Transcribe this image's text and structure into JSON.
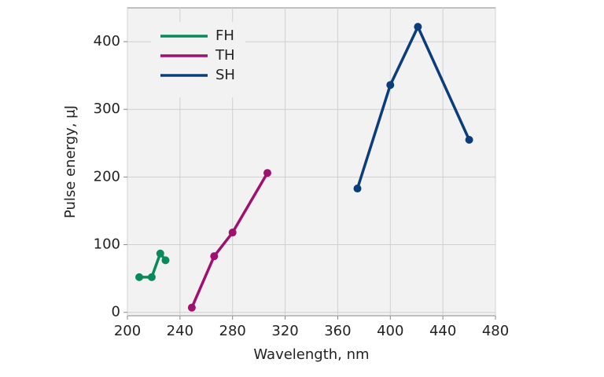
{
  "chart_data": {
    "type": "line",
    "xlabel": "Wavelength, nm",
    "ylabel": "Pulse energy, μJ",
    "xlim": [
      200,
      480
    ],
    "xticks": [
      200,
      240,
      280,
      320,
      360,
      400,
      440,
      480
    ],
    "ylim": [
      -5,
      450
    ],
    "yticks": [
      0,
      100,
      200,
      300,
      400
    ],
    "grid": true,
    "legend": "upper left",
    "series": [
      {
        "name": "FH",
        "color": "#0a8a5a",
        "x": [
          209,
          218.5,
          225,
          229
        ],
        "values": [
          52,
          52,
          87,
          77
        ]
      },
      {
        "name": "TH",
        "color": "#a0106e",
        "x": [
          249,
          266,
          280,
          306.5
        ],
        "values": [
          7,
          83,
          118,
          206
        ]
      },
      {
        "name": "SH",
        "color": "#0a3d7a",
        "x": [
          375,
          400,
          421,
          460
        ],
        "values": [
          183,
          336,
          422,
          255
        ]
      }
    ]
  }
}
